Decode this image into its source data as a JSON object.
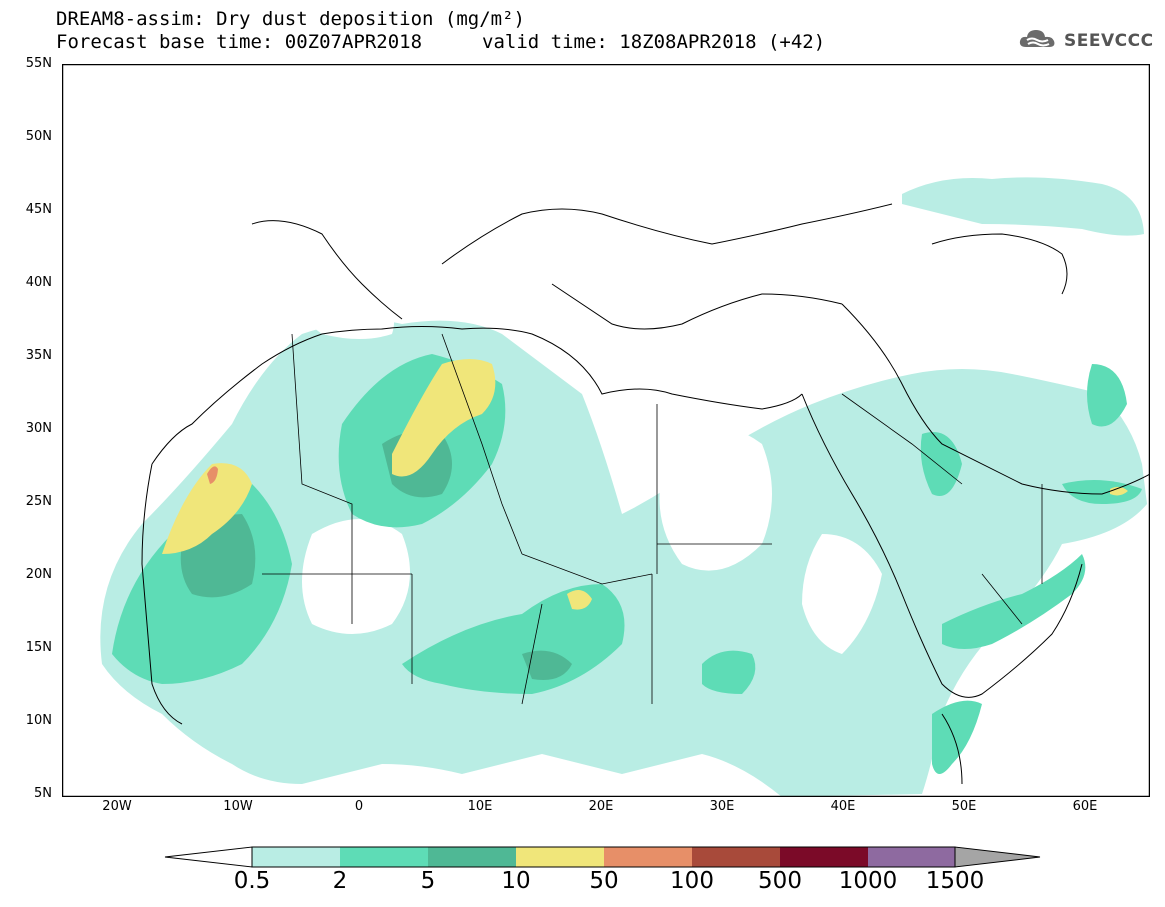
{
  "header": {
    "title": "DREAM8-assim: Dry dust deposition (mg/m²)",
    "base_time": "Forecast base time: 00Z07APR2018",
    "valid_time": "valid time: 18Z08APR2018 (+42)"
  },
  "logo": {
    "text": "SEEVCCC",
    "icon": "cloud-icon"
  },
  "axes": {
    "lat_labels": [
      "55N",
      "50N",
      "45N",
      "40N",
      "35N",
      "30N",
      "25N",
      "20N",
      "15N",
      "10N",
      "5N"
    ],
    "lon_labels": [
      "20W",
      "10W",
      "0",
      "10E",
      "20E",
      "30E",
      "40E",
      "50E",
      "60E"
    ]
  },
  "legend": {
    "labels": [
      "0.5",
      "2",
      "5",
      "10",
      "50",
      "100",
      "500",
      "1000",
      "1500"
    ],
    "colors": [
      "#b9ede4",
      "#5edcb6",
      "#4fb895",
      "#f0e67a",
      "#e78f68",
      "#a84a3a",
      "#7b0a28",
      "#8e6aa0"
    ],
    "under_color": "#ffffff",
    "over_color": "#a5a5a5"
  },
  "map": {
    "extent": {
      "lon_min": -25,
      "lon_max": 65,
      "lat_min": 5,
      "lat_max": 55
    },
    "background": "#ffffff",
    "border_color": "#000000"
  }
}
